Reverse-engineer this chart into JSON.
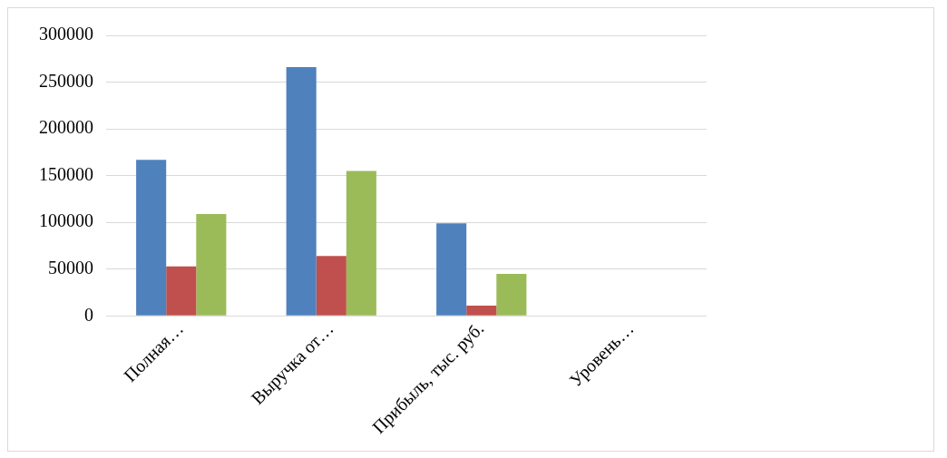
{
  "chart_data": {
    "type": "bar",
    "categories": [
      "Полная…",
      "Выручка от…",
      "Прибыль, тыс. руб.",
      "Уровень…"
    ],
    "series": [
      {
        "color": "#4f81bd",
        "values": [
          167000,
          266000,
          99000,
          0
        ]
      },
      {
        "color": "#c0504d",
        "values": [
          53000,
          64000,
          11000,
          0
        ]
      },
      {
        "color": "#9bbb59",
        "values": [
          109000,
          155000,
          45000,
          0
        ]
      }
    ],
    "ylim": [
      0,
      300000
    ],
    "yticks": [
      0,
      50000,
      100000,
      150000,
      200000,
      250000,
      300000
    ],
    "grid": "y"
  }
}
